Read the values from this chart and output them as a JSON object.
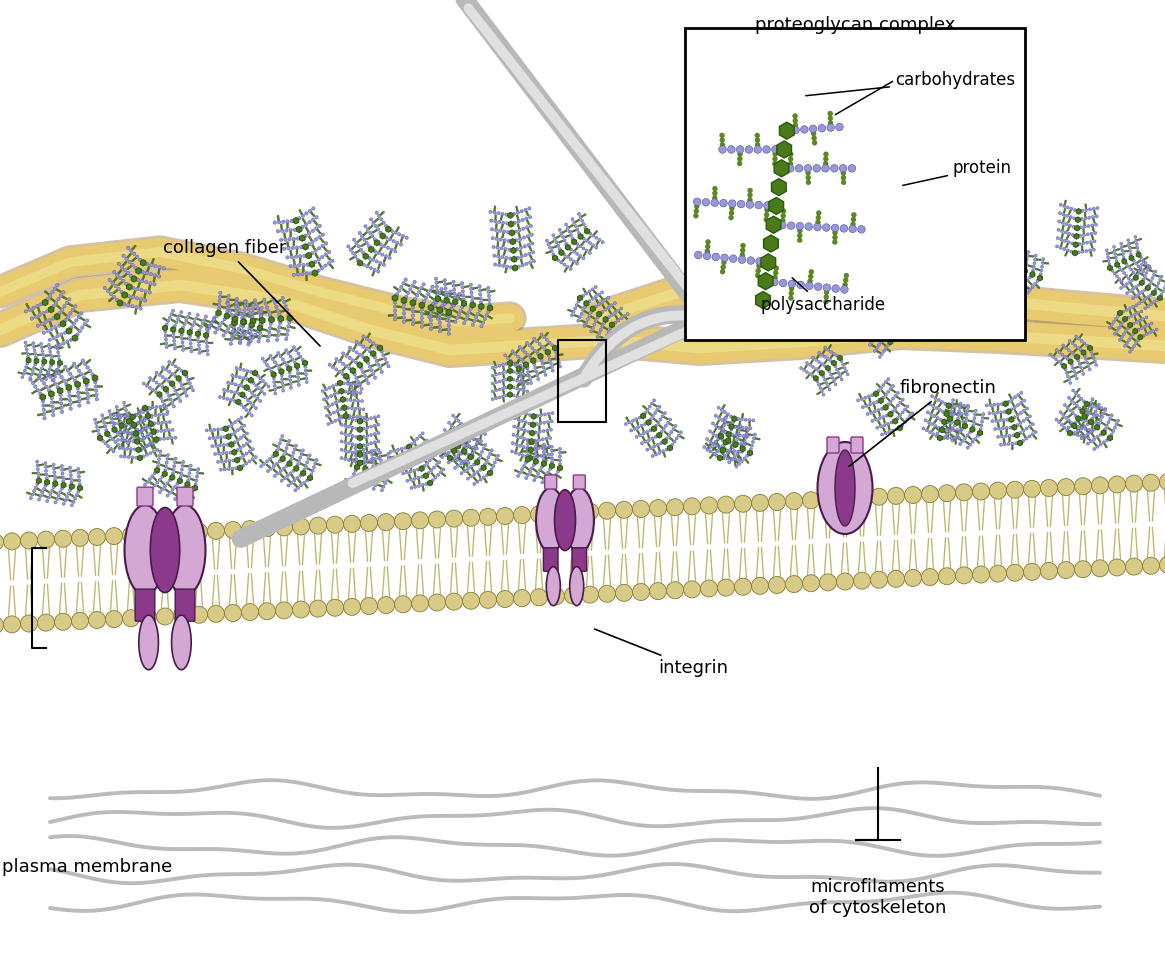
{
  "background_color": "#ffffff",
  "membrane_head_color": "#d8cb88",
  "membrane_head_edge": "#8a7a30",
  "membrane_tail_color": "#b8b090",
  "integrin_light": "#d4a8d4",
  "integrin_dark": "#8B3A8B",
  "integrin_outline": "#4A1A4A",
  "poly_hex_color": "#4a7a1a",
  "poly_hex_edge": "#2a5a0a",
  "protein_dot_color": "#9898d8",
  "protein_dot_edge": "#5050a0",
  "carb_dot_color": "#5a8a1a",
  "carb_dot_edge": "#2a5a0a",
  "collagen_color": "#e0c060",
  "collagen_edge": "#a07830",
  "microfilament_color": "#aaaaaa",
  "labels": {
    "proteoglycan_complex": "proteoglycan complex",
    "carbohydrates": "carbohydrates",
    "protein": "protein",
    "polysaccharide": "polysaccharide",
    "fibronectin": "fibronectin",
    "collagen_fiber": "collagen fiber",
    "integrin": "integrin",
    "plasma_membrane": "plasma membrane",
    "microfilaments": "microfilaments\nof cytoskeleton"
  },
  "label_fontsize": 13
}
